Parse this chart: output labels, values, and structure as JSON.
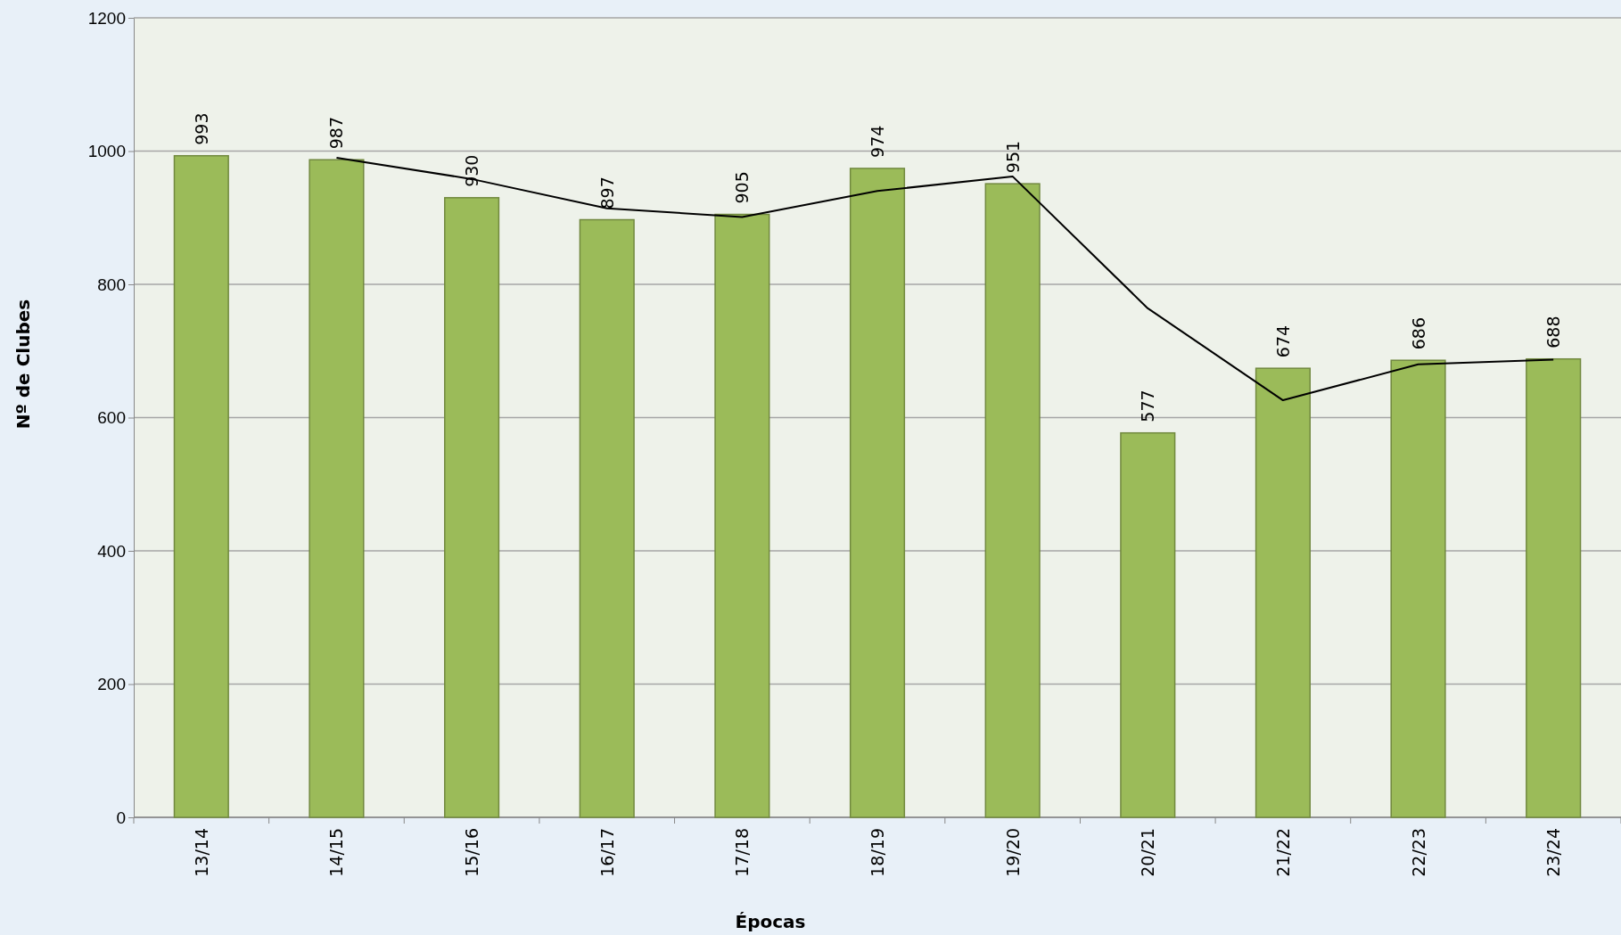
{
  "chart_data": {
    "type": "bar",
    "xlabel": "Épocas",
    "ylabel": "Nº de Clubes",
    "categories": [
      "13/14",
      "14/15",
      "15/16",
      "16/17",
      "17/18",
      "18/19",
      "19/20",
      "20/21",
      "21/22",
      "22/23",
      "23/24"
    ],
    "series": [
      {
        "color": "#9bbb59",
        "values": [
          993,
          987,
          930,
          897,
          905,
          974,
          951,
          577,
          674,
          686,
          688
        ],
        "value_labels": [
          "993",
          "987",
          "930",
          "897",
          "905",
          "974",
          "951",
          "577",
          "674",
          "686",
          "688"
        ]
      },
      {
        "type": "line",
        "color": "#000000",
        "values": [
          null,
          990,
          958,
          914,
          901,
          940,
          962,
          764,
          626,
          680,
          687
        ]
      }
    ],
    "ylim": [
      0,
      1200
    ],
    "yticks": [
      0,
      200,
      400,
      600,
      800,
      1000,
      1200
    ],
    "grid": "y",
    "marker": "none",
    "line_style": "solid"
  }
}
